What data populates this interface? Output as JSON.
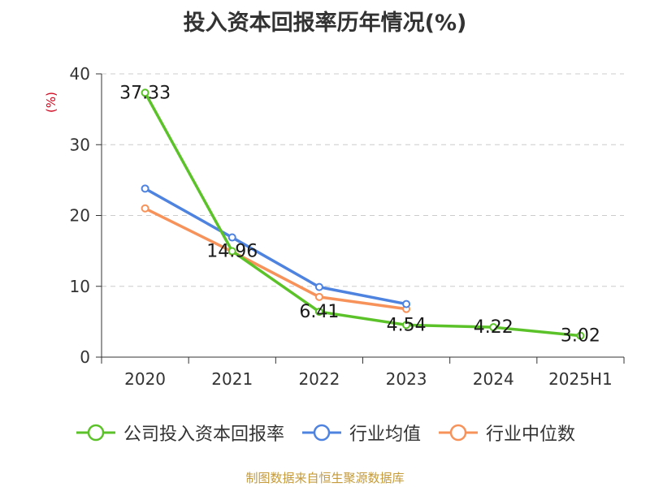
{
  "chart_data": {
    "type": "line",
    "title": "投入资本回报率历年情况(%)",
    "ylabel": "(%)",
    "xlabel": "",
    "categories": [
      "2020",
      "2021",
      "2022",
      "2023",
      "2024",
      "2025H1"
    ],
    "ylim": [
      0,
      40
    ],
    "yticks": [
      0,
      10,
      20,
      30,
      40
    ],
    "grid": true,
    "legend_position": "bottom",
    "series": [
      {
        "name": "公司投入资本回报率",
        "color": "#5cc22a",
        "values": [
          37.33,
          14.96,
          6.41,
          4.54,
          4.22,
          3.02
        ],
        "labels": [
          "37.33",
          "14.96",
          "6.41",
          "4.54",
          "4.22",
          "3.02"
        ]
      },
      {
        "name": "行业均值",
        "color": "#4f83e0",
        "values": [
          23.8,
          16.9,
          9.9,
          7.5,
          null,
          null
        ]
      },
      {
        "name": "行业中位数",
        "color": "#f7935a",
        "values": [
          21.0,
          14.9,
          8.5,
          6.8,
          null,
          null
        ]
      }
    ]
  },
  "source": "制图数据来自恒生聚源数据库"
}
